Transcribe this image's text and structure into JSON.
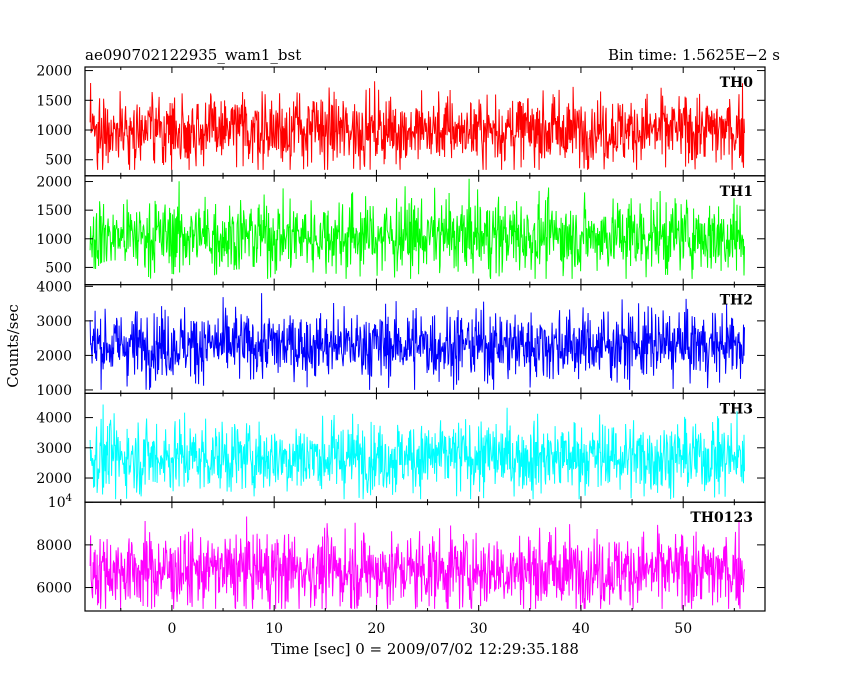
{
  "header": {
    "title": "ae090702122935_wam1_bst",
    "bin_time": "Bin time: 1.5625E−2 s"
  },
  "chart_data": {
    "type": "line",
    "xlabel": "Time [sec] 0 = 2009/07/02 12:29:35.188",
    "ylabel": "Counts/sec",
    "xlim": [
      -8.5,
      58
    ],
    "x_data_range": [
      -8,
      56
    ],
    "x_ticks": [
      0,
      10,
      20,
      30,
      40,
      50
    ],
    "panels": [
      {
        "name": "TH0",
        "color": "#ff0000",
        "ylim": [
          230,
          2060
        ],
        "band": [
          330,
          1850
        ],
        "mean": 1000,
        "spread": 300,
        "y_ticks": [
          500,
          1000,
          1500,
          2000
        ],
        "y_tick_labels": [
          "500",
          "1000",
          "1500",
          "2000"
        ]
      },
      {
        "name": "TH1",
        "color": "#00ff00",
        "ylim": [
          200,
          2100
        ],
        "band": [
          300,
          2050
        ],
        "mean": 1050,
        "spread": 330,
        "y_ticks": [
          500,
          1000,
          1500,
          2000
        ],
        "y_tick_labels": [
          "500",
          "1000",
          "1500",
          "2000"
        ]
      },
      {
        "name": "TH2",
        "color": "#0000ff",
        "ylim": [
          900,
          4050
        ],
        "band": [
          1000,
          4000
        ],
        "mean": 2300,
        "spread": 500,
        "y_ticks": [
          1000,
          2000,
          3000,
          4000
        ],
        "y_tick_labels": [
          "1000",
          "2000",
          "3000",
          "4000"
        ]
      },
      {
        "name": "TH3",
        "color": "#00ffff",
        "ylim": [
          1200,
          4800
        ],
        "band": [
          1300,
          4700
        ],
        "mean": 2700,
        "spread": 600,
        "y_ticks": [
          2000,
          3000,
          4000
        ],
        "y_tick_labels": [
          "2000",
          "3000",
          "4000"
        ]
      },
      {
        "name": "TH0123",
        "color": "#ff00ff",
        "ylim": [
          4900,
          10000
        ],
        "band": [
          5000,
          9900
        ],
        "mean": 6800,
        "spread": 900,
        "y_ticks": [
          6000,
          8000,
          10000
        ],
        "y_tick_labels": [
          "6000",
          "8000",
          "10^4"
        ]
      }
    ]
  }
}
